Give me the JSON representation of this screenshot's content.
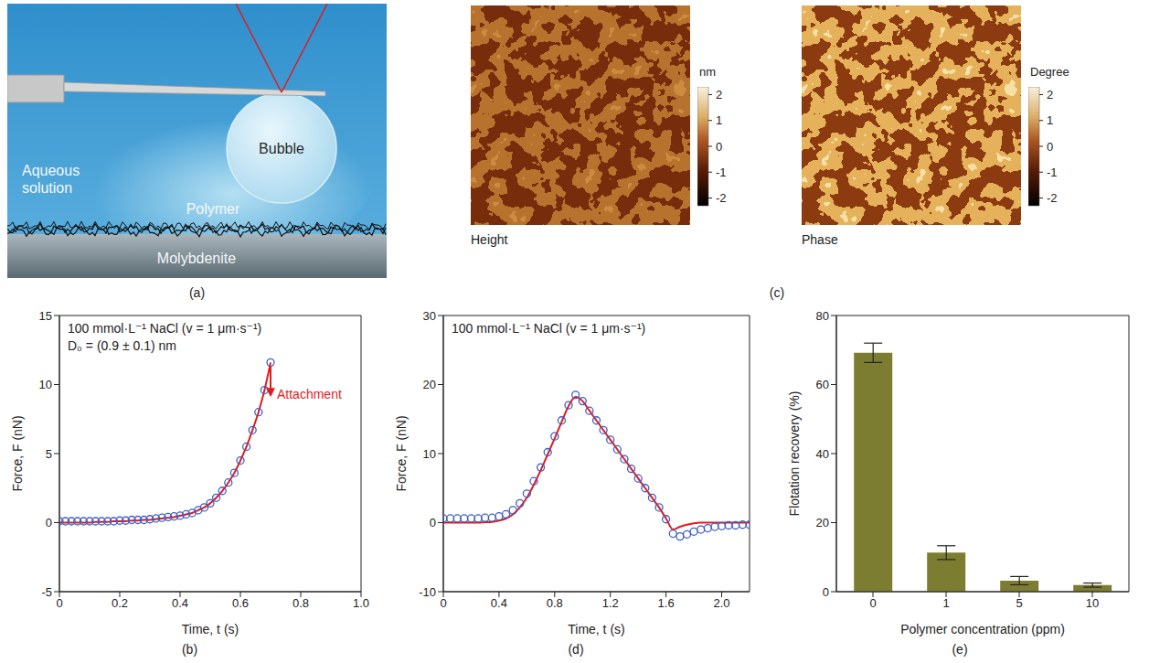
{
  "chart_data": [
    {
      "panel": "(b)",
      "type": "line",
      "annotations": [
        "100 mmol·L⁻¹ NaCl (v = 1 μm·s⁻¹)",
        "D₀ = (0.9 ± 0.1) nm"
      ],
      "arrow_annotation": "Attachment",
      "x_label": "Time, t (s)",
      "y_label": "Force, F (nN)",
      "xlim": [
        0,
        1
      ],
      "xticks": [
        0,
        0.2,
        0.4,
        0.6,
        0.8,
        {
          "value": 1,
          "label": "1.0"
        }
      ],
      "ylim": [
        -5,
        15
      ],
      "yticks": [
        -5,
        0,
        5,
        10,
        15
      ],
      "x": [
        0,
        0.02,
        0.04,
        0.06,
        0.08,
        0.1,
        0.12,
        0.14,
        0.16,
        0.18,
        0.2,
        0.22,
        0.24,
        0.26,
        0.28,
        0.3,
        0.32,
        0.34,
        0.36,
        0.38,
        0.4,
        0.42,
        0.44,
        0.46,
        0.48,
        0.5,
        0.52,
        0.54,
        0.56,
        0.58,
        0.6,
        0.62,
        0.64,
        0.66,
        0.68,
        0.7
      ],
      "series": [
        {
          "type": "scatter",
          "marker": "circle",
          "color": "#3d5fc4",
          "values": [
            0.1,
            0.1,
            0.1,
            0.1,
            0.1,
            0.1,
            0.1,
            0.1,
            0.1,
            0.1,
            0.15,
            0.15,
            0.2,
            0.2,
            0.2,
            0.25,
            0.3,
            0.35,
            0.4,
            0.45,
            0.5,
            0.6,
            0.7,
            0.9,
            1.1,
            1.4,
            1.8,
            2.3,
            2.9,
            3.6,
            4.5,
            5.5,
            6.7,
            8.0,
            9.6,
            11.6
          ]
        },
        {
          "type": "line",
          "line_style": "solid",
          "color": "#e31a1c",
          "values": [
            0,
            0,
            0,
            0,
            0,
            0,
            0.05,
            0.05,
            0.05,
            0.1,
            0.1,
            0.1,
            0.15,
            0.15,
            0.2,
            0.2,
            0.25,
            0.3,
            0.35,
            0.4,
            0.5,
            0.6,
            0.7,
            0.9,
            1.1,
            1.4,
            1.8,
            2.3,
            2.9,
            3.6,
            4.5,
            5.5,
            6.7,
            8.0,
            9.6,
            11.6
          ]
        }
      ]
    },
    {
      "panel": "(d)",
      "type": "line",
      "annotations": [
        "100 mmol·L⁻¹ NaCl (v = 1 μm·s⁻¹)"
      ],
      "x_label": "Time, t (s)",
      "y_label": "Force, F (nN)",
      "xlim": [
        0,
        2.2
      ],
      "xticks": [
        0,
        0.4,
        0.8,
        1.2,
        1.6,
        {
          "value": 2,
          "label": "2.0"
        }
      ],
      "ylim": [
        -10,
        30
      ],
      "yticks": [
        -10,
        0,
        10,
        20,
        30
      ],
      "x": [
        0,
        0.05,
        0.1,
        0.15,
        0.2,
        0.25,
        0.3,
        0.35,
        0.4,
        0.45,
        0.5,
        0.55,
        0.6,
        0.65,
        0.7,
        0.75,
        0.8,
        0.85,
        0.9,
        0.95,
        1.0,
        1.05,
        1.1,
        1.15,
        1.2,
        1.25,
        1.3,
        1.35,
        1.4,
        1.45,
        1.5,
        1.55,
        1.6,
        1.65,
        1.7,
        1.75,
        1.8,
        1.85,
        1.9,
        1.95,
        2.0,
        2.05,
        2.1,
        2.15,
        2.2
      ],
      "series": [
        {
          "type": "scatter",
          "marker": "circle",
          "color": "#3d5fc4",
          "values": [
            0.6,
            0.6,
            0.6,
            0.6,
            0.6,
            0.6,
            0.7,
            0.7,
            0.9,
            1.2,
            1.8,
            2.8,
            4.2,
            6.0,
            8.0,
            10.2,
            12.5,
            14.8,
            17.0,
            18.5,
            17.6,
            16.2,
            14.8,
            13.4,
            12.0,
            10.6,
            9.2,
            7.8,
            6.4,
            5.0,
            3.6,
            2.2,
            0.5,
            -1.6,
            -2.0,
            -1.7,
            -1.3,
            -1.0,
            -0.8,
            -0.6,
            -0.5,
            -0.4,
            -0.4,
            -0.3,
            -0.3
          ]
        },
        {
          "type": "line",
          "line_style": "solid",
          "color": "#e31a1c",
          "values": [
            0,
            0,
            0,
            0,
            0,
            0,
            0.05,
            0.1,
            0.3,
            0.6,
            1.2,
            2.2,
            3.6,
            5.5,
            7.6,
            9.9,
            12.2,
            14.6,
            16.9,
            18.2,
            17.6,
            16.2,
            14.8,
            13.4,
            12.0,
            10.6,
            9.2,
            7.8,
            6.4,
            5.0,
            3.6,
            2.2,
            0.6,
            -1.0,
            -0.6,
            -0.3,
            -0.1,
            0,
            0,
            0,
            0,
            0,
            0,
            0,
            0
          ]
        }
      ]
    },
    {
      "panel": "(e)",
      "type": "bar",
      "x_label": "Polymer concentration (ppm)",
      "y_label": "Flotation recovery (%)",
      "categories": [
        "0",
        "1",
        "5",
        "10"
      ],
      "values": [
        69.2,
        11.3,
        3.2,
        1.9
      ],
      "errors": [
        2.8,
        2.0,
        1.2,
        0.6
      ],
      "color": "#7d7d32",
      "ylim": [
        0,
        80
      ],
      "yticks": [
        0,
        20,
        40,
        60,
        80
      ]
    }
  ],
  "schematic": {
    "panel": "(a)",
    "bubble": "Bubble",
    "medium": "Aqueous solution",
    "layer": "Polymer",
    "substrate": "Molybdenite"
  },
  "afm": {
    "panel": "(c)",
    "images": [
      {
        "caption": "Height",
        "colorbar": {
          "unit": "nm",
          "range": [
            -2.3,
            2.3
          ],
          "ticks": [
            2,
            1,
            0,
            -1,
            -2
          ]
        }
      },
      {
        "caption": "Phase",
        "colorbar": {
          "unit": "Degree",
          "range": [
            -2.3,
            2.3
          ],
          "ticks": [
            2,
            1,
            0,
            -1,
            -2
          ]
        }
      }
    ]
  }
}
